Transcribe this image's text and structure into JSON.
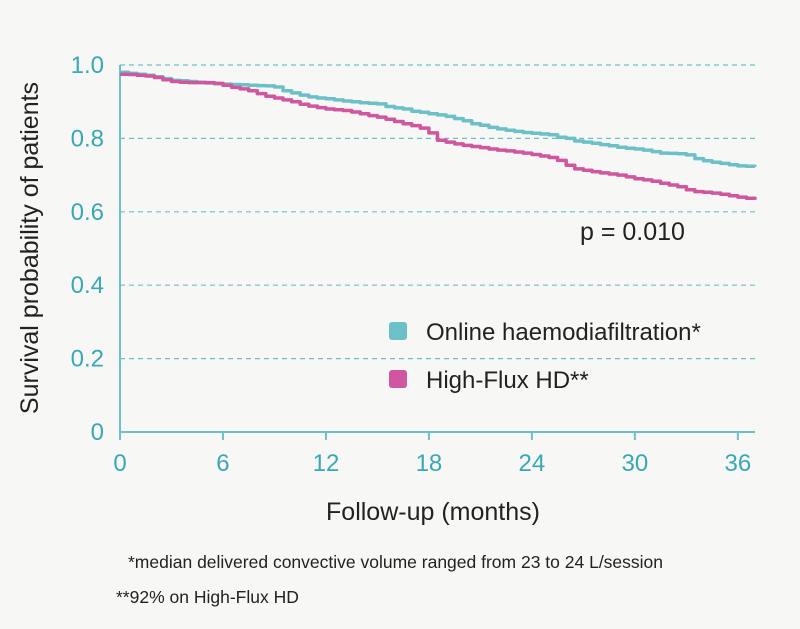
{
  "chart_data": {
    "type": "line",
    "xlabel": "Follow-up (months)",
    "ylabel": "Survival probability of patients",
    "xlim": [
      0,
      37
    ],
    "ylim": [
      0,
      1.0
    ],
    "x_ticks": [
      0,
      6,
      12,
      18,
      24,
      30,
      36
    ],
    "x_tick_labels": [
      "0",
      "6",
      "12",
      "18",
      "24",
      "30",
      "36"
    ],
    "y_ticks": [
      0,
      0.2,
      0.4,
      0.6,
      0.8,
      1.0
    ],
    "y_tick_labels": [
      "0",
      "0.2",
      "0.4",
      "0.6",
      "0.8",
      "1.0"
    ],
    "grid": "horizontal dashed",
    "legend_position": "bottom-right",
    "annotation": "p = 0.010",
    "series": [
      {
        "name": "Online haemodiafiltration*",
        "color": "#6cc0c8",
        "x": [
          0,
          0.5,
          1,
          1.5,
          2,
          2.5,
          3,
          3.5,
          4,
          4.5,
          5,
          5.5,
          6,
          6.5,
          7,
          7.5,
          8,
          8.5,
          9,
          9.5,
          10,
          10.5,
          11,
          11.5,
          12,
          12.5,
          13,
          13.5,
          14,
          14.5,
          15,
          15.5,
          16,
          16.5,
          17,
          17.5,
          18,
          18.5,
          19,
          19.5,
          20,
          20.5,
          21,
          21.5,
          22,
          22.5,
          23,
          23.5,
          24,
          24.5,
          25,
          25.5,
          26,
          26.5,
          27,
          27.5,
          28,
          28.5,
          29,
          29.5,
          30,
          30.5,
          31,
          31.5,
          32,
          32.5,
          33,
          33.5,
          34,
          34.5,
          35,
          35.5,
          36,
          36.5,
          37
        ],
        "y": [
          0.98,
          0.977,
          0.975,
          0.972,
          0.968,
          0.963,
          0.958,
          0.957,
          0.955,
          0.953,
          0.951,
          0.949,
          0.948,
          0.947,
          0.946,
          0.945,
          0.944,
          0.943,
          0.94,
          0.93,
          0.924,
          0.918,
          0.913,
          0.91,
          0.908,
          0.905,
          0.902,
          0.9,
          0.897,
          0.896,
          0.894,
          0.887,
          0.883,
          0.88,
          0.874,
          0.871,
          0.867,
          0.864,
          0.86,
          0.854,
          0.848,
          0.84,
          0.836,
          0.83,
          0.826,
          0.822,
          0.819,
          0.816,
          0.814,
          0.812,
          0.81,
          0.803,
          0.8,
          0.793,
          0.79,
          0.787,
          0.783,
          0.78,
          0.776,
          0.773,
          0.771,
          0.768,
          0.764,
          0.76,
          0.759,
          0.758,
          0.755,
          0.745,
          0.739,
          0.735,
          0.732,
          0.728,
          0.725,
          0.724,
          0.723
        ]
      },
      {
        "name": "High-Flux HD**",
        "color": "#d0579f",
        "x": [
          0,
          0.5,
          1,
          1.5,
          2,
          2.5,
          3,
          3.5,
          4,
          4.5,
          5,
          5.5,
          6,
          6.5,
          7,
          7.5,
          8,
          8.5,
          9,
          9.5,
          10,
          10.5,
          11,
          11.5,
          12,
          12.5,
          13,
          13.5,
          14,
          14.5,
          15,
          15.5,
          16,
          16.5,
          17,
          17.5,
          18,
          18.5,
          19,
          19.5,
          20,
          20.5,
          21,
          21.5,
          22,
          22.5,
          23,
          23.5,
          24,
          24.5,
          25,
          25.5,
          26,
          26.5,
          27,
          27.5,
          28,
          28.5,
          29,
          29.5,
          30,
          30.5,
          31,
          31.5,
          32,
          32.5,
          33,
          33.5,
          34,
          34.5,
          35,
          35.5,
          36,
          36.5,
          37
        ],
        "y": [
          0.975,
          0.974,
          0.972,
          0.97,
          0.966,
          0.96,
          0.955,
          0.953,
          0.952,
          0.952,
          0.952,
          0.95,
          0.945,
          0.939,
          0.935,
          0.93,
          0.922,
          0.915,
          0.91,
          0.905,
          0.9,
          0.893,
          0.888,
          0.884,
          0.88,
          0.878,
          0.876,
          0.872,
          0.867,
          0.862,
          0.858,
          0.852,
          0.846,
          0.84,
          0.835,
          0.828,
          0.815,
          0.795,
          0.79,
          0.785,
          0.781,
          0.778,
          0.775,
          0.771,
          0.768,
          0.766,
          0.763,
          0.76,
          0.756,
          0.752,
          0.748,
          0.74,
          0.727,
          0.717,
          0.713,
          0.709,
          0.706,
          0.703,
          0.7,
          0.695,
          0.69,
          0.687,
          0.683,
          0.678,
          0.673,
          0.668,
          0.66,
          0.655,
          0.653,
          0.651,
          0.648,
          0.644,
          0.64,
          0.637,
          0.633
        ]
      }
    ]
  },
  "footnotes": [
    "*median delivered convective volume ranged from 23 to 24 L/session",
    "**92% on High-Flux HD"
  ]
}
